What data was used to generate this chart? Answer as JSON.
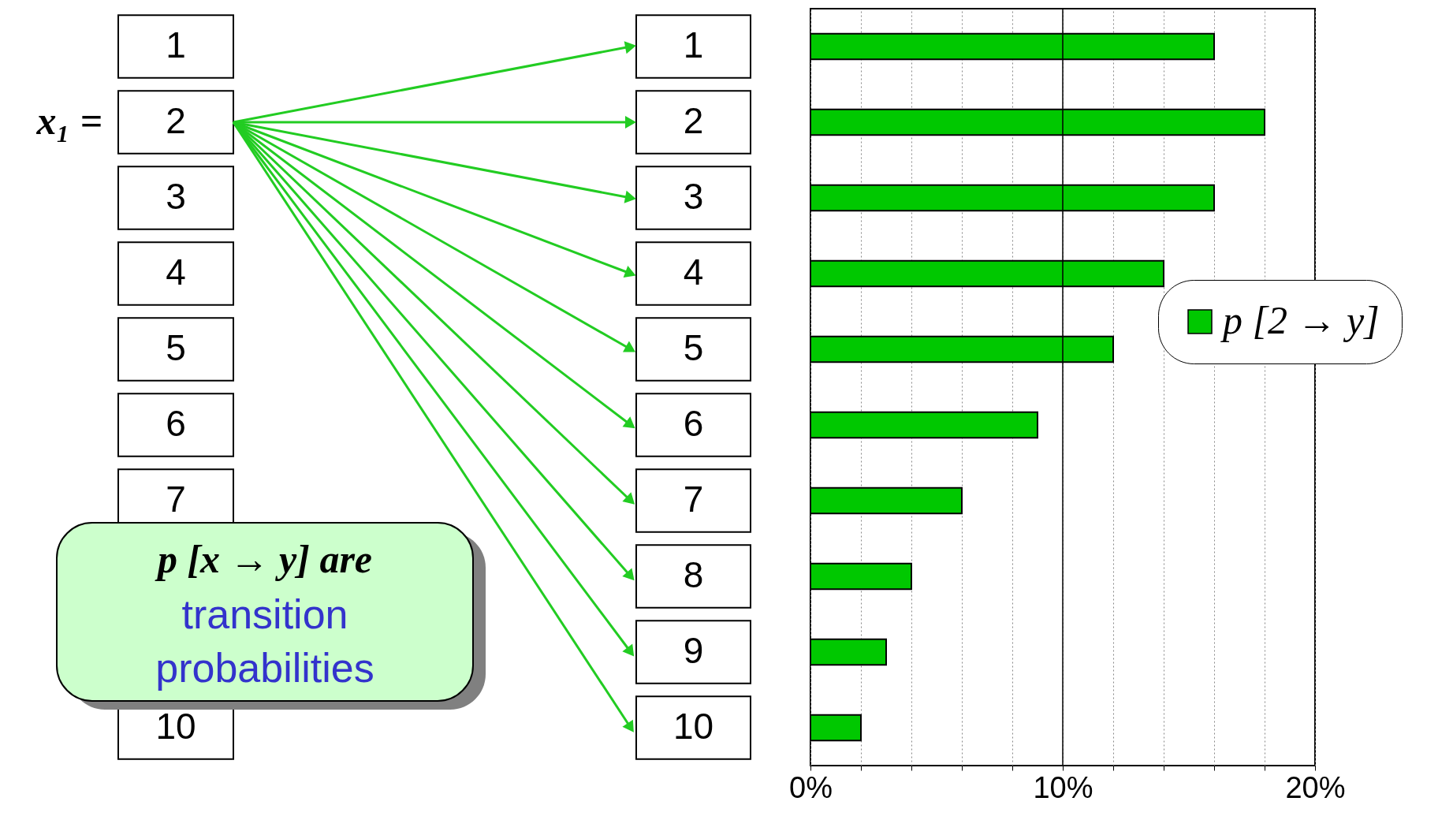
{
  "chart_data": {
    "type": "bar",
    "orientation": "horizontal",
    "categories": [
      "1",
      "2",
      "3",
      "4",
      "5",
      "6",
      "7",
      "8",
      "9",
      "10"
    ],
    "series": [
      {
        "name": "p [2 → y]",
        "color": "#00c800",
        "values": [
          16,
          18,
          16,
          14,
          12,
          9,
          6,
          4,
          3,
          2
        ]
      }
    ],
    "xlim": [
      0,
      20
    ],
    "xticks": [
      {
        "value": 0,
        "label": "0%"
      },
      {
        "value": 2,
        "label": null
      },
      {
        "value": 4,
        "label": null
      },
      {
        "value": 6,
        "label": null
      },
      {
        "value": 8,
        "label": null
      },
      {
        "value": 10,
        "label": "10%"
      },
      {
        "value": 12,
        "label": null
      },
      {
        "value": 14,
        "label": null
      },
      {
        "value": 16,
        "label": null
      },
      {
        "value": 18,
        "label": null
      },
      {
        "value": 20,
        "label": "20%"
      }
    ],
    "grid": "x",
    "legend": "right",
    "ref_lines": [
      {
        "axis": "x",
        "value": 10,
        "color": "#000000",
        "line_style": "solid"
      }
    ],
    "annotations": [
      "x₁ =",
      "p [x → y]  are",
      "transition probabilities",
      "1",
      "2",
      "3",
      "4",
      "5",
      "6",
      "7",
      "10"
    ]
  }
}
